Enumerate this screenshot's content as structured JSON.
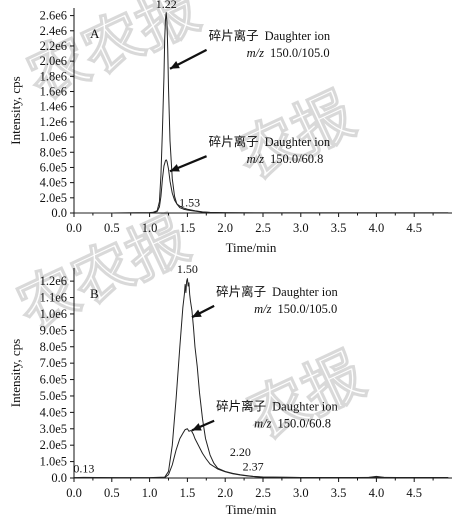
{
  "chart_data": [
    {
      "panel": "A",
      "type": "line",
      "xlabel": "Time/min",
      "ylabel": "Intensity, cps",
      "xlim": [
        0.0,
        5.0
      ],
      "ylim": [
        0,
        2700000
      ],
      "xticks": [
        "0.0",
        "0.5",
        "1.0",
        "1.5",
        "2.0",
        "2.5",
        "3.0",
        "3.5",
        "4.0",
        "4.5"
      ],
      "yticks": [
        {
          "label": "0.0",
          "value": 0
        },
        {
          "label": "2.0e5",
          "value": 200000
        },
        {
          "label": "4.0e5",
          "value": 400000
        },
        {
          "label": "6.0e5",
          "value": 600000
        },
        {
          "label": "8.0e5",
          "value": 800000
        },
        {
          "label": "1.0e6",
          "value": 1000000
        },
        {
          "label": "1.2e6",
          "value": 1200000
        },
        {
          "label": "1.4e6",
          "value": 1400000
        },
        {
          "label": "1.6e6",
          "value": 1600000
        },
        {
          "label": "1.8e6",
          "value": 1800000
        },
        {
          "label": "2.0e6",
          "value": 2000000
        },
        {
          "label": "2.2e6",
          "value": 2200000
        },
        {
          "label": "2.4e6",
          "value": 2400000
        },
        {
          "label": "2.6e6",
          "value": 2600000
        }
      ],
      "peak_labels": [
        {
          "text": "1.22",
          "x": 1.22,
          "y": 2650000
        },
        {
          "text": "1.53",
          "x": 1.53,
          "y": 30000
        }
      ],
      "annotations": [
        {
          "line1_cn": "碎片离子",
          "line1_en": "Daughter ion",
          "line2_prefix": "m/z",
          "line2_value": "150.0/105.0",
          "x": 1.78,
          "y": 2280000,
          "arrow_to": [
            1.27,
            1900000
          ]
        },
        {
          "line1_cn": "碎片离子",
          "line1_en": "Daughter ion",
          "line2_prefix": "m/z",
          "line2_value": "150.0/60.8",
          "x": 1.78,
          "y": 880000,
          "arrow_to": [
            1.27,
            550000
          ]
        }
      ],
      "series": [
        {
          "name": "m/z 150.0/105.0",
          "color": "#222222",
          "x": [
            0.0,
            0.5,
            1.0,
            1.05,
            1.1,
            1.13,
            1.15,
            1.17,
            1.19,
            1.2,
            1.21,
            1.22,
            1.23,
            1.24,
            1.25,
            1.27,
            1.3,
            1.33,
            1.36,
            1.4,
            1.45,
            1.5,
            1.53,
            1.6,
            1.7,
            1.8,
            2.0,
            2.5,
            3.0,
            3.5,
            4.0,
            4.5,
            4.95
          ],
          "y": [
            0,
            0,
            5000,
            10000,
            30000,
            150000,
            500000,
            1100000,
            1800000,
            2300000,
            2550000,
            2640000,
            2500000,
            2150000,
            1650000,
            950000,
            450000,
            220000,
            120000,
            70000,
            50000,
            40000,
            35000,
            25000,
            12000,
            6000,
            3000,
            2000,
            1000,
            1000,
            1000,
            1000,
            1000
          ]
        },
        {
          "name": "m/z 150.0/60.8",
          "color": "#222222",
          "x": [
            0.0,
            0.5,
            1.0,
            1.05,
            1.1,
            1.13,
            1.15,
            1.17,
            1.19,
            1.21,
            1.22,
            1.23,
            1.25,
            1.27,
            1.3,
            1.33,
            1.36,
            1.4,
            1.45,
            1.5,
            1.55,
            1.6,
            1.7,
            1.8,
            2.0,
            2.5,
            3.0,
            3.5,
            4.0,
            4.5,
            4.95
          ],
          "y": [
            0,
            0,
            3000,
            8000,
            20000,
            80000,
            220000,
            450000,
            620000,
            690000,
            700000,
            680000,
            580000,
            420000,
            260000,
            170000,
            120000,
            90000,
            65000,
            50000,
            40000,
            30000,
            15000,
            8000,
            4000,
            2000,
            1000,
            1000,
            1000,
            1000,
            1000
          ]
        }
      ]
    },
    {
      "panel": "B",
      "type": "line",
      "xlabel": "Time/min",
      "ylabel": "Intensity, cps",
      "xlim": [
        0.0,
        5.0
      ],
      "ylim": [
        0,
        1280000
      ],
      "xticks": [
        "0.0",
        "0.5",
        "1.0",
        "1.5",
        "2.0",
        "2.5",
        "3.0",
        "3.5",
        "4.0",
        "4.5"
      ],
      "yticks": [
        {
          "label": "0.0",
          "value": 0
        },
        {
          "label": "1.0e5",
          "value": 100000
        },
        {
          "label": "2.0e5",
          "value": 200000
        },
        {
          "label": "3.0e5",
          "value": 300000
        },
        {
          "label": "4.0e5",
          "value": 400000
        },
        {
          "label": "5.0e5",
          "value": 500000
        },
        {
          "label": "6.0e5",
          "value": 600000
        },
        {
          "label": "7.0e5",
          "value": 700000
        },
        {
          "label": "8.0e5",
          "value": 800000
        },
        {
          "label": "9.0e5",
          "value": 900000
        },
        {
          "label": "1.0e6",
          "value": 1000000
        },
        {
          "label": "1.1e6",
          "value": 1100000
        },
        {
          "label": "1.2e6",
          "value": 1200000
        }
      ],
      "peak_labels": [
        {
          "text": "1.50",
          "x": 1.5,
          "y": 1225000
        },
        {
          "text": "0.13",
          "x": 0.13,
          "y": 8000
        },
        {
          "text": "2.20",
          "x": 2.2,
          "y": 110000
        },
        {
          "text": "2.37",
          "x": 2.37,
          "y": 20000
        }
      ],
      "annotations": [
        {
          "line1_cn": "碎片离子",
          "line1_en": "Daughter ion",
          "line2_prefix": "m/z",
          "line2_value": "150.0/105.0",
          "x": 1.88,
          "y": 1110000,
          "arrow_to": [
            1.56,
            980000
          ]
        },
        {
          "line1_cn": "碎片离子",
          "line1_en": "Daughter ion",
          "line2_prefix": "m/z",
          "line2_value": "150.0/60.8",
          "x": 1.88,
          "y": 410000,
          "arrow_to": [
            1.56,
            290000
          ]
        }
      ],
      "series": [
        {
          "name": "m/z 150.0/105.0",
          "color": "#222222",
          "x": [
            0.0,
            0.13,
            0.3,
            0.6,
            1.0,
            1.2,
            1.25,
            1.3,
            1.35,
            1.4,
            1.42,
            1.44,
            1.46,
            1.47,
            1.48,
            1.49,
            1.5,
            1.51,
            1.52,
            1.53,
            1.54,
            1.56,
            1.58,
            1.6,
            1.63,
            1.66,
            1.7,
            1.74,
            1.8,
            1.85,
            1.9,
            2.0,
            2.1,
            2.2,
            2.3,
            2.37,
            2.5,
            3.0,
            3.5,
            3.9,
            4.0,
            4.1,
            4.3,
            4.95
          ],
          "y": [
            2000,
            4000,
            3000,
            2000,
            2000,
            5000,
            40000,
            200000,
            480000,
            800000,
            920000,
            1040000,
            1120000,
            1180000,
            1130000,
            1200000,
            1215000,
            1170000,
            1190000,
            1120000,
            1080000,
            1020000,
            920000,
            800000,
            680000,
            520000,
            360000,
            240000,
            140000,
            90000,
            60000,
            40000,
            28000,
            20000,
            14000,
            10000,
            6000,
            3000,
            3000,
            4000,
            10000,
            4000,
            3000,
            3000
          ]
        },
        {
          "name": "m/z 150.0/60.8",
          "color": "#222222",
          "x": [
            0.0,
            0.5,
            1.0,
            1.2,
            1.25,
            1.3,
            1.35,
            1.4,
            1.45,
            1.47,
            1.5,
            1.52,
            1.55,
            1.58,
            1.6,
            1.65,
            1.7,
            1.75,
            1.8,
            1.9,
            2.0,
            2.1,
            2.2,
            2.3,
            2.4,
            2.5,
            3.0,
            3.5,
            4.0,
            4.5,
            4.95
          ],
          "y": [
            1000,
            1000,
            1000,
            3000,
            20000,
            80000,
            170000,
            240000,
            280000,
            295000,
            300000,
            285000,
            290000,
            265000,
            240000,
            195000,
            150000,
            115000,
            85000,
            55000,
            38000,
            26000,
            18000,
            12000,
            8000,
            5000,
            3000,
            2000,
            4000,
            2000,
            2000
          ]
        }
      ]
    }
  ]
}
